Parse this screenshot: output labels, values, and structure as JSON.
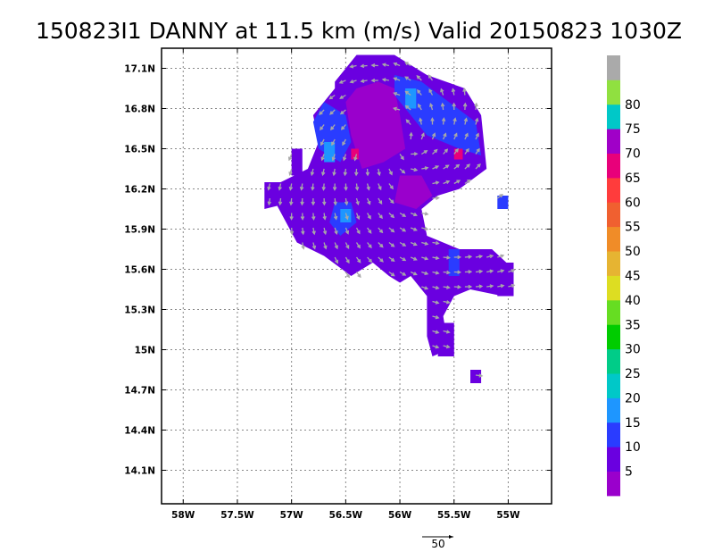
{
  "title": "150823I1 DANNY at 11.5 km (m/s) Valid 20150823 1030Z",
  "chart_data": {
    "type": "heatmap",
    "title": "150823I1 DANNY at 11.5 km (m/s) Valid 20150823 1030Z",
    "xlabel": "",
    "ylabel": "",
    "units": "m/s",
    "xlim": [
      -58.2,
      -54.6
    ],
    "ylim": [
      13.85,
      17.25
    ],
    "x_ticks": [
      {
        "value": -58.0,
        "label": "58W"
      },
      {
        "value": -57.5,
        "label": "57.5W"
      },
      {
        "value": -57.0,
        "label": "57W"
      },
      {
        "value": -56.5,
        "label": "56.5W"
      },
      {
        "value": -56.0,
        "label": "56W"
      },
      {
        "value": -55.5,
        "label": "55.5W"
      },
      {
        "value": -55.0,
        "label": "55W"
      }
    ],
    "y_ticks": [
      {
        "value": 14.1,
        "label": "14.1N"
      },
      {
        "value": 14.4,
        "label": "14.4N"
      },
      {
        "value": 14.7,
        "label": "14.7N"
      },
      {
        "value": 15.0,
        "label": "15N"
      },
      {
        "value": 15.3,
        "label": "15.3N"
      },
      {
        "value": 15.6,
        "label": "15.6N"
      },
      {
        "value": 15.9,
        "label": "15.9N"
      },
      {
        "value": 16.2,
        "label": "16.2N"
      },
      {
        "value": 16.5,
        "label": "16.5N"
      },
      {
        "value": 16.8,
        "label": "16.8N"
      },
      {
        "value": 17.1,
        "label": "17.1N"
      }
    ],
    "grid": true,
    "colorbar": {
      "labels": [
        "5",
        "10",
        "15",
        "20",
        "25",
        "30",
        "35",
        "40",
        "45",
        "50",
        "55",
        "60",
        "65",
        "70",
        "75",
        "80"
      ],
      "colors": [
        "#9a00cc",
        "#6a00e0",
        "#2a3cff",
        "#1e96ff",
        "#00c8c8",
        "#00cc88",
        "#00cc00",
        "#66dd22",
        "#dddd22",
        "#e6b432",
        "#f08c28",
        "#f06030",
        "#ff3c3c",
        "#e8007a",
        "#a000c8",
        "#00c8c8",
        "#90e040",
        "#aaaaaa"
      ]
    },
    "reference_vector": {
      "label": "50",
      "value": 50
    },
    "regions": [
      {
        "level": 1,
        "points": [
          [
            -56.6,
            17.0
          ],
          [
            -56.4,
            17.2
          ],
          [
            -56.05,
            17.2
          ],
          [
            -55.75,
            17.05
          ],
          [
            -55.4,
            16.95
          ],
          [
            -55.25,
            16.75
          ],
          [
            -55.2,
            16.35
          ],
          [
            -55.45,
            16.2
          ],
          [
            -55.65,
            16.15
          ],
          [
            -55.8,
            16.05
          ],
          [
            -55.75,
            15.85
          ],
          [
            -55.45,
            15.75
          ],
          [
            -55.15,
            15.75
          ],
          [
            -54.95,
            15.6
          ],
          [
            -55.05,
            15.4
          ],
          [
            -55.35,
            15.45
          ],
          [
            -55.5,
            15.4
          ],
          [
            -55.6,
            15.25
          ],
          [
            -55.55,
            15.0
          ],
          [
            -55.7,
            14.95
          ],
          [
            -55.75,
            15.1
          ],
          [
            -55.75,
            15.4
          ],
          [
            -55.9,
            15.55
          ],
          [
            -56.0,
            15.5
          ],
          [
            -56.1,
            15.55
          ],
          [
            -56.25,
            15.65
          ],
          [
            -56.45,
            15.55
          ],
          [
            -56.7,
            15.7
          ],
          [
            -56.95,
            15.8
          ],
          [
            -57.15,
            16.1
          ],
          [
            -57.1,
            16.25
          ],
          [
            -56.85,
            16.35
          ],
          [
            -56.75,
            16.55
          ],
          [
            -56.8,
            16.75
          ],
          [
            -56.6,
            16.95
          ]
        ]
      },
      {
        "level": 1,
        "points": [
          [
            -57.25,
            16.25
          ],
          [
            -57.05,
            16.25
          ],
          [
            -57.0,
            16.1
          ],
          [
            -57.25,
            16.05
          ]
        ]
      },
      {
        "level": 1,
        "points": [
          [
            -57.0,
            16.5
          ],
          [
            -56.9,
            16.5
          ],
          [
            -56.9,
            16.3
          ],
          [
            -57.0,
            16.3
          ]
        ]
      },
      {
        "level": 1,
        "points": [
          [
            -55.6,
            15.2
          ],
          [
            -55.5,
            15.2
          ],
          [
            -55.5,
            14.95
          ],
          [
            -55.65,
            14.95
          ]
        ]
      },
      {
        "level": 1,
        "points": [
          [
            -55.35,
            14.85
          ],
          [
            -55.25,
            14.85
          ],
          [
            -55.25,
            14.75
          ],
          [
            -55.35,
            14.75
          ]
        ]
      },
      {
        "level": 1,
        "points": [
          [
            -55.1,
            15.65
          ],
          [
            -54.95,
            15.65
          ],
          [
            -54.95,
            15.4
          ],
          [
            -55.1,
            15.4
          ]
        ]
      },
      {
        "level": 0,
        "points": [
          [
            -56.4,
            16.95
          ],
          [
            -56.2,
            17.0
          ],
          [
            -56.05,
            16.95
          ],
          [
            -56.0,
            16.75
          ],
          [
            -55.95,
            16.5
          ],
          [
            -56.15,
            16.4
          ],
          [
            -56.35,
            16.35
          ],
          [
            -56.45,
            16.6
          ],
          [
            -56.5,
            16.85
          ]
        ]
      },
      {
        "level": 0,
        "points": [
          [
            -56.0,
            16.3
          ],
          [
            -55.8,
            16.3
          ],
          [
            -55.7,
            16.15
          ],
          [
            -55.85,
            16.05
          ],
          [
            -56.05,
            16.1
          ]
        ]
      },
      {
        "level": 2,
        "points": [
          [
            -56.7,
            16.85
          ],
          [
            -56.5,
            16.75
          ],
          [
            -56.45,
            16.55
          ],
          [
            -56.55,
            16.4
          ],
          [
            -56.75,
            16.5
          ],
          [
            -56.8,
            16.7
          ]
        ]
      },
      {
        "level": 2,
        "points": [
          [
            -56.05,
            17.05
          ],
          [
            -55.8,
            17.0
          ],
          [
            -55.55,
            16.85
          ],
          [
            -55.3,
            16.7
          ],
          [
            -55.25,
            16.45
          ],
          [
            -55.45,
            16.5
          ],
          [
            -55.75,
            16.6
          ],
          [
            -55.9,
            16.75
          ],
          [
            -56.05,
            16.9
          ]
        ]
      },
      {
        "level": 2,
        "points": [
          [
            -56.6,
            16.1
          ],
          [
            -56.45,
            16.1
          ],
          [
            -56.4,
            15.95
          ],
          [
            -56.55,
            15.85
          ],
          [
            -56.65,
            15.95
          ]
        ]
      },
      {
        "level": 2,
        "points": [
          [
            -55.55,
            15.75
          ],
          [
            -55.45,
            15.75
          ],
          [
            -55.45,
            15.55
          ],
          [
            -55.55,
            15.55
          ]
        ]
      },
      {
        "level": 2,
        "points": [
          [
            -55.1,
            16.15
          ],
          [
            -55.0,
            16.15
          ],
          [
            -55.0,
            16.05
          ],
          [
            -55.1,
            16.05
          ]
        ]
      },
      {
        "level": 3,
        "points": [
          [
            -56.7,
            16.55
          ],
          [
            -56.6,
            16.55
          ],
          [
            -56.6,
            16.4
          ],
          [
            -56.7,
            16.4
          ]
        ]
      },
      {
        "level": 3,
        "points": [
          [
            -55.95,
            16.95
          ],
          [
            -55.85,
            16.95
          ],
          [
            -55.85,
            16.8
          ],
          [
            -55.95,
            16.8
          ]
        ]
      },
      {
        "level": 3,
        "points": [
          [
            -56.55,
            16.05
          ],
          [
            -56.45,
            16.05
          ],
          [
            -56.45,
            15.95
          ],
          [
            -56.55,
            15.95
          ]
        ]
      },
      {
        "level": 13,
        "points": [
          [
            -56.45,
            16.5
          ],
          [
            -56.38,
            16.5
          ],
          [
            -56.38,
            16.42
          ],
          [
            -56.45,
            16.42
          ]
        ]
      },
      {
        "level": 13,
        "points": [
          [
            -55.5,
            16.5
          ],
          [
            -55.42,
            16.5
          ],
          [
            -55.42,
            16.42
          ],
          [
            -55.5,
            16.42
          ]
        ]
      }
    ]
  }
}
